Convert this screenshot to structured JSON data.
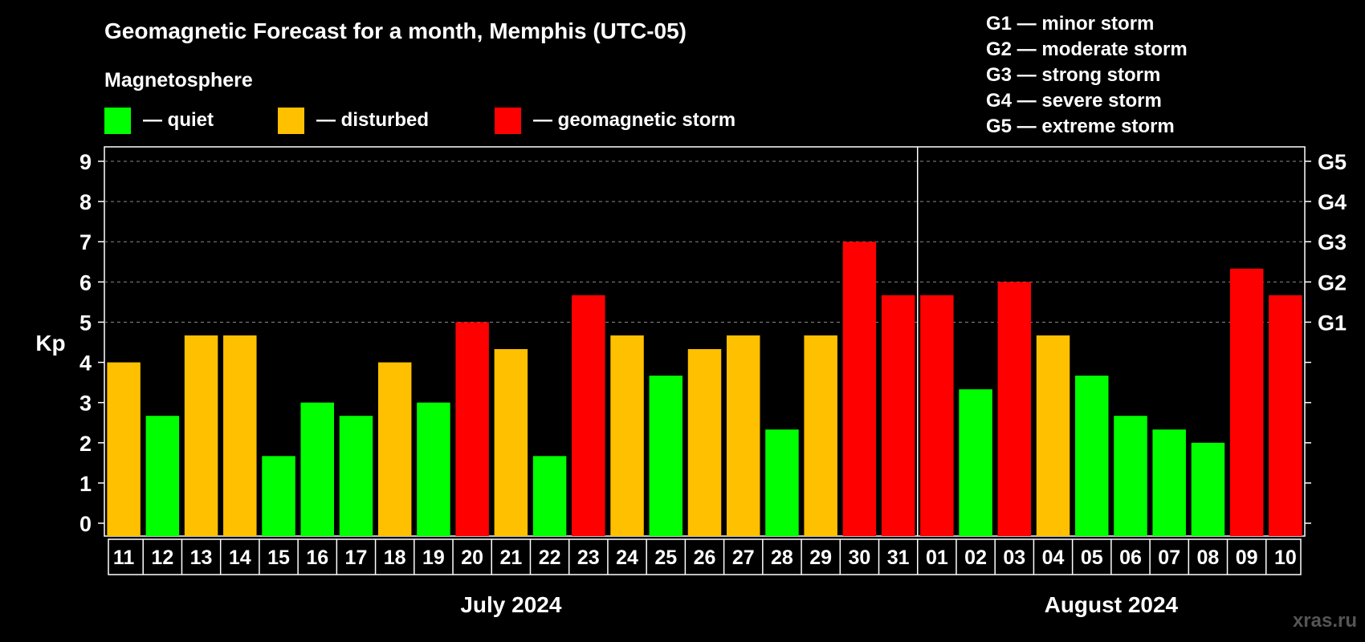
{
  "title": "Geomagnetic Forecast for a month, Memphis (UTC-05)",
  "legend": {
    "heading": "Magnetosphere",
    "items": [
      {
        "label": "— quiet",
        "color": "#00ff00"
      },
      {
        "label": "— disturbed",
        "color": "#ffc000"
      },
      {
        "label": "— geomagnetic storm",
        "color": "#ff0000"
      }
    ]
  },
  "g_scale": [
    "G1 — minor storm",
    "G2 — moderate storm",
    "G3 — strong storm",
    "G4 — severe storm",
    "G5 — extreme storm"
  ],
  "watermark": "xras.ru",
  "colors": {
    "quiet": "#00ff00",
    "disturbed": "#ffc000",
    "storm": "#ff0000"
  },
  "chart_data": {
    "type": "bar",
    "ylabel": "Kp",
    "ylim": [
      0,
      9
    ],
    "yticks": [
      "0",
      "1",
      "2",
      "3",
      "4",
      "5",
      "6",
      "7",
      "8",
      "9"
    ],
    "right_axis_labels": [
      {
        "kp": 5,
        "label": "G1"
      },
      {
        "kp": 6,
        "label": "G2"
      },
      {
        "kp": 7,
        "label": "G3"
      },
      {
        "kp": 8,
        "label": "G4"
      },
      {
        "kp": 9,
        "label": "G5"
      }
    ],
    "grid": "horizontal dashed at Kp 5–9",
    "months": [
      {
        "label": "July 2024",
        "days": [
          "11",
          "12",
          "13",
          "14",
          "15",
          "16",
          "17",
          "18",
          "19",
          "20",
          "21",
          "22",
          "23",
          "24",
          "25",
          "26",
          "27",
          "28",
          "29",
          "30",
          "31"
        ]
      },
      {
        "label": "August 2024",
        "days": [
          "01",
          "02",
          "03",
          "04",
          "05",
          "06",
          "07",
          "08",
          "09",
          "10"
        ]
      }
    ],
    "values": [
      4.0,
      2.67,
      4.67,
      4.67,
      1.67,
      3.0,
      2.67,
      4.0,
      3.0,
      5.0,
      4.33,
      1.67,
      5.67,
      4.67,
      3.67,
      4.33,
      4.67,
      2.33,
      4.67,
      7.0,
      5.67,
      5.67,
      3.33,
      6.0,
      4.67,
      3.67,
      2.67,
      2.33,
      2.0,
      6.33,
      5.67
    ],
    "status": [
      "disturbed",
      "quiet",
      "disturbed",
      "disturbed",
      "quiet",
      "quiet",
      "quiet",
      "disturbed",
      "quiet",
      "storm",
      "disturbed",
      "quiet",
      "storm",
      "disturbed",
      "quiet",
      "disturbed",
      "disturbed",
      "quiet",
      "disturbed",
      "storm",
      "storm",
      "storm",
      "quiet",
      "storm",
      "disturbed",
      "quiet",
      "quiet",
      "quiet",
      "quiet",
      "storm",
      "storm"
    ]
  }
}
